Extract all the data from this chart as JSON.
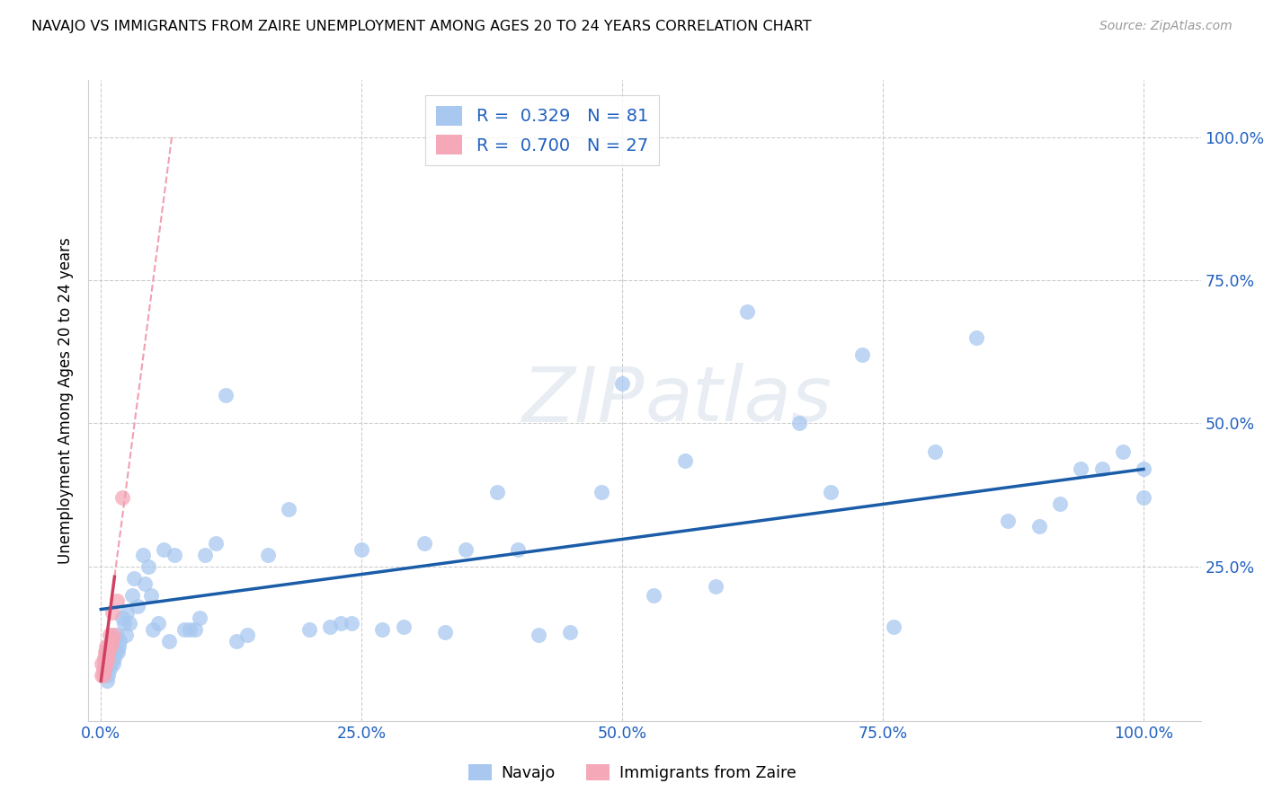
{
  "title": "NAVAJO VS IMMIGRANTS FROM ZAIRE UNEMPLOYMENT AMONG AGES 20 TO 24 YEARS CORRELATION CHART",
  "source": "Source: ZipAtlas.com",
  "ylabel": "Unemployment Among Ages 20 to 24 years",
  "x_tick_labels": [
    "0.0%",
    "25.0%",
    "50.0%",
    "75.0%",
    "100.0%"
  ],
  "x_tick_positions": [
    0.0,
    0.25,
    0.5,
    0.75,
    1.0
  ],
  "y_tick_labels": [
    "25.0%",
    "50.0%",
    "75.0%",
    "100.0%"
  ],
  "y_tick_positions": [
    0.25,
    0.5,
    0.75,
    1.0
  ],
  "navajo_color": "#a8c8f0",
  "zaire_color": "#f5a8b8",
  "navajo_line_color": "#1a5ca8",
  "zaire_line_color": "#d04060",
  "zaire_dash_color": "#f0a0b0",
  "legend_R_navajo": "R = 0.329",
  "legend_N_navajo": "N = 81",
  "legend_R_zaire": "R = 0.700",
  "legend_N_zaire": "N = 27",
  "legend_label_navajo": "Navajo",
  "legend_label_zaire": "Immigrants from Zaire",
  "R_navajo": 0.329,
  "N_navajo": 81,
  "R_zaire": 0.7,
  "N_zaire": 27,
  "navajo_x": [
    0.005,
    0.005,
    0.005,
    0.006,
    0.007,
    0.008,
    0.008,
    0.009,
    0.01,
    0.01,
    0.011,
    0.012,
    0.012,
    0.013,
    0.014,
    0.015,
    0.016,
    0.017,
    0.018,
    0.02,
    0.022,
    0.024,
    0.025,
    0.027,
    0.03,
    0.032,
    0.035,
    0.04,
    0.042,
    0.045,
    0.048,
    0.05,
    0.055,
    0.06,
    0.065,
    0.07,
    0.08,
    0.085,
    0.09,
    0.095,
    0.1,
    0.11,
    0.12,
    0.13,
    0.14,
    0.16,
    0.18,
    0.2,
    0.22,
    0.23,
    0.24,
    0.25,
    0.27,
    0.29,
    0.31,
    0.33,
    0.35,
    0.38,
    0.4,
    0.42,
    0.45,
    0.48,
    0.5,
    0.53,
    0.56,
    0.59,
    0.62,
    0.67,
    0.7,
    0.73,
    0.76,
    0.8,
    0.84,
    0.87,
    0.9,
    0.92,
    0.94,
    0.96,
    0.98,
    1.0,
    1.0
  ],
  "navajo_y": [
    0.08,
    0.09,
    0.1,
    0.05,
    0.06,
    0.07,
    0.1,
    0.08,
    0.09,
    0.12,
    0.1,
    0.08,
    0.12,
    0.09,
    0.1,
    0.13,
    0.1,
    0.11,
    0.12,
    0.16,
    0.15,
    0.13,
    0.17,
    0.15,
    0.2,
    0.23,
    0.18,
    0.27,
    0.22,
    0.25,
    0.2,
    0.14,
    0.15,
    0.28,
    0.12,
    0.27,
    0.14,
    0.14,
    0.14,
    0.16,
    0.27,
    0.29,
    0.55,
    0.12,
    0.13,
    0.27,
    0.35,
    0.14,
    0.145,
    0.15,
    0.15,
    0.28,
    0.14,
    0.145,
    0.29,
    0.135,
    0.28,
    0.38,
    0.28,
    0.13,
    0.135,
    0.38,
    0.57,
    0.2,
    0.435,
    0.215,
    0.695,
    0.5,
    0.38,
    0.62,
    0.145,
    0.45,
    0.65,
    0.33,
    0.32,
    0.36,
    0.42,
    0.42,
    0.45,
    0.42,
    0.37
  ],
  "zaire_x": [
    0.001,
    0.001,
    0.002,
    0.002,
    0.003,
    0.003,
    0.003,
    0.004,
    0.004,
    0.004,
    0.005,
    0.005,
    0.005,
    0.005,
    0.006,
    0.006,
    0.007,
    0.007,
    0.008,
    0.008,
    0.009,
    0.01,
    0.01,
    0.011,
    0.012,
    0.015,
    0.02
  ],
  "zaire_y": [
    0.08,
    0.06,
    0.07,
    0.06,
    0.07,
    0.08,
    0.09,
    0.08,
    0.09,
    0.1,
    0.08,
    0.09,
    0.1,
    0.11,
    0.1,
    0.11,
    0.09,
    0.1,
    0.11,
    0.13,
    0.11,
    0.12,
    0.12,
    0.17,
    0.13,
    0.19,
    0.37
  ],
  "watermark_zip": "ZIP",
  "watermark_atlas": "atlas",
  "background_color": "#ffffff",
  "grid_color": "#cccccc",
  "navajo_line_intercept": 0.175,
  "navajo_line_slope": 0.245,
  "zaire_line_intercept": 0.05,
  "zaire_line_slope": 14.0
}
